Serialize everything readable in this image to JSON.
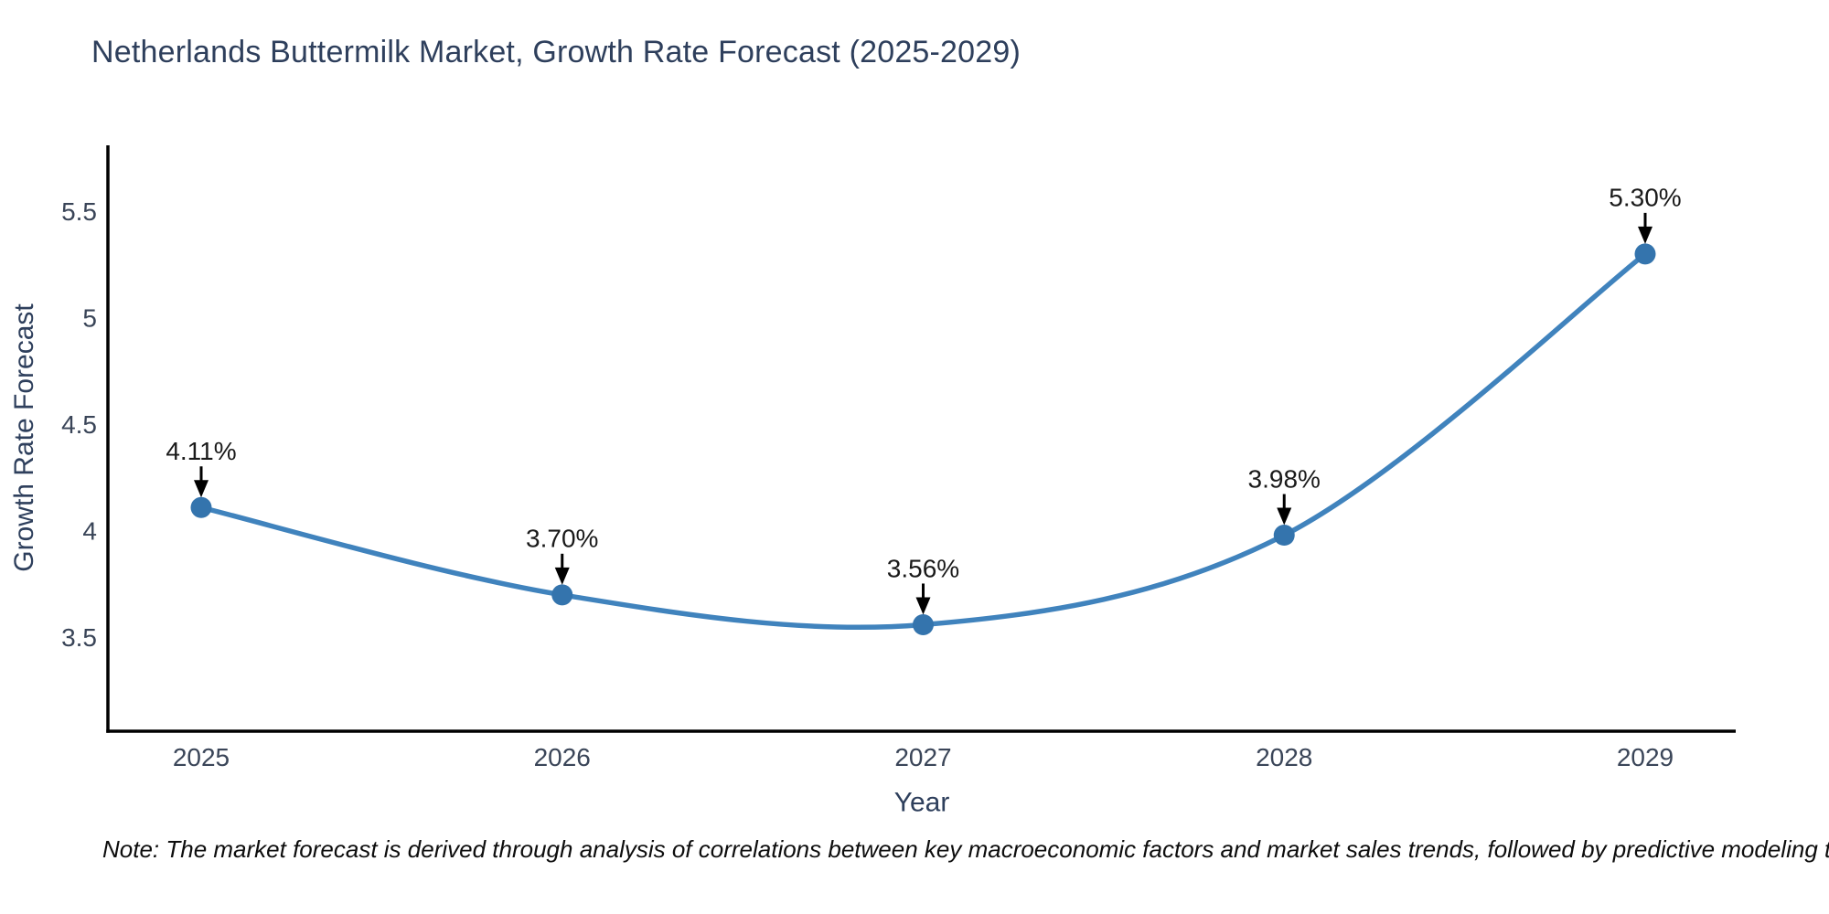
{
  "chart_data": {
    "type": "line",
    "title": "Netherlands Buttermilk Market, Growth Rate Forecast (2025-2029)",
    "xlabel": "Year",
    "ylabel": "Growth Rate Forecast",
    "categories": [
      "2025",
      "2026",
      "2027",
      "2028",
      "2029"
    ],
    "series": [
      {
        "name": "Growth Rate Forecast",
        "values": [
          4.11,
          3.7,
          3.56,
          3.98,
          5.3
        ],
        "point_labels": [
          "4.11%",
          "3.70%",
          "3.56%",
          "3.98%",
          "5.30%"
        ]
      }
    ],
    "y_ticks": [
      3.5,
      4,
      4.5,
      5,
      5.5
    ],
    "y_tick_labels": [
      "3.5",
      "4",
      "4.5",
      "5",
      "5.5"
    ],
    "ylim": [
      3.06,
      5.81
    ],
    "grid": false,
    "legend": false,
    "curve": "spline",
    "colors": {
      "line": "#4083bd",
      "marker": "#3474ad",
      "annotation_text": "#1a1a1a",
      "annotation_arrow": "#000000",
      "axis_line": "#000000",
      "tick_label": "#3a4558",
      "title": "#2e3f5c",
      "background": "#ffffff"
    }
  },
  "footnote": "Note: The market forecast is derived through analysis of correlations between key macroeconomic factors and market sales trends, followed by predictive modeling to project future sales"
}
